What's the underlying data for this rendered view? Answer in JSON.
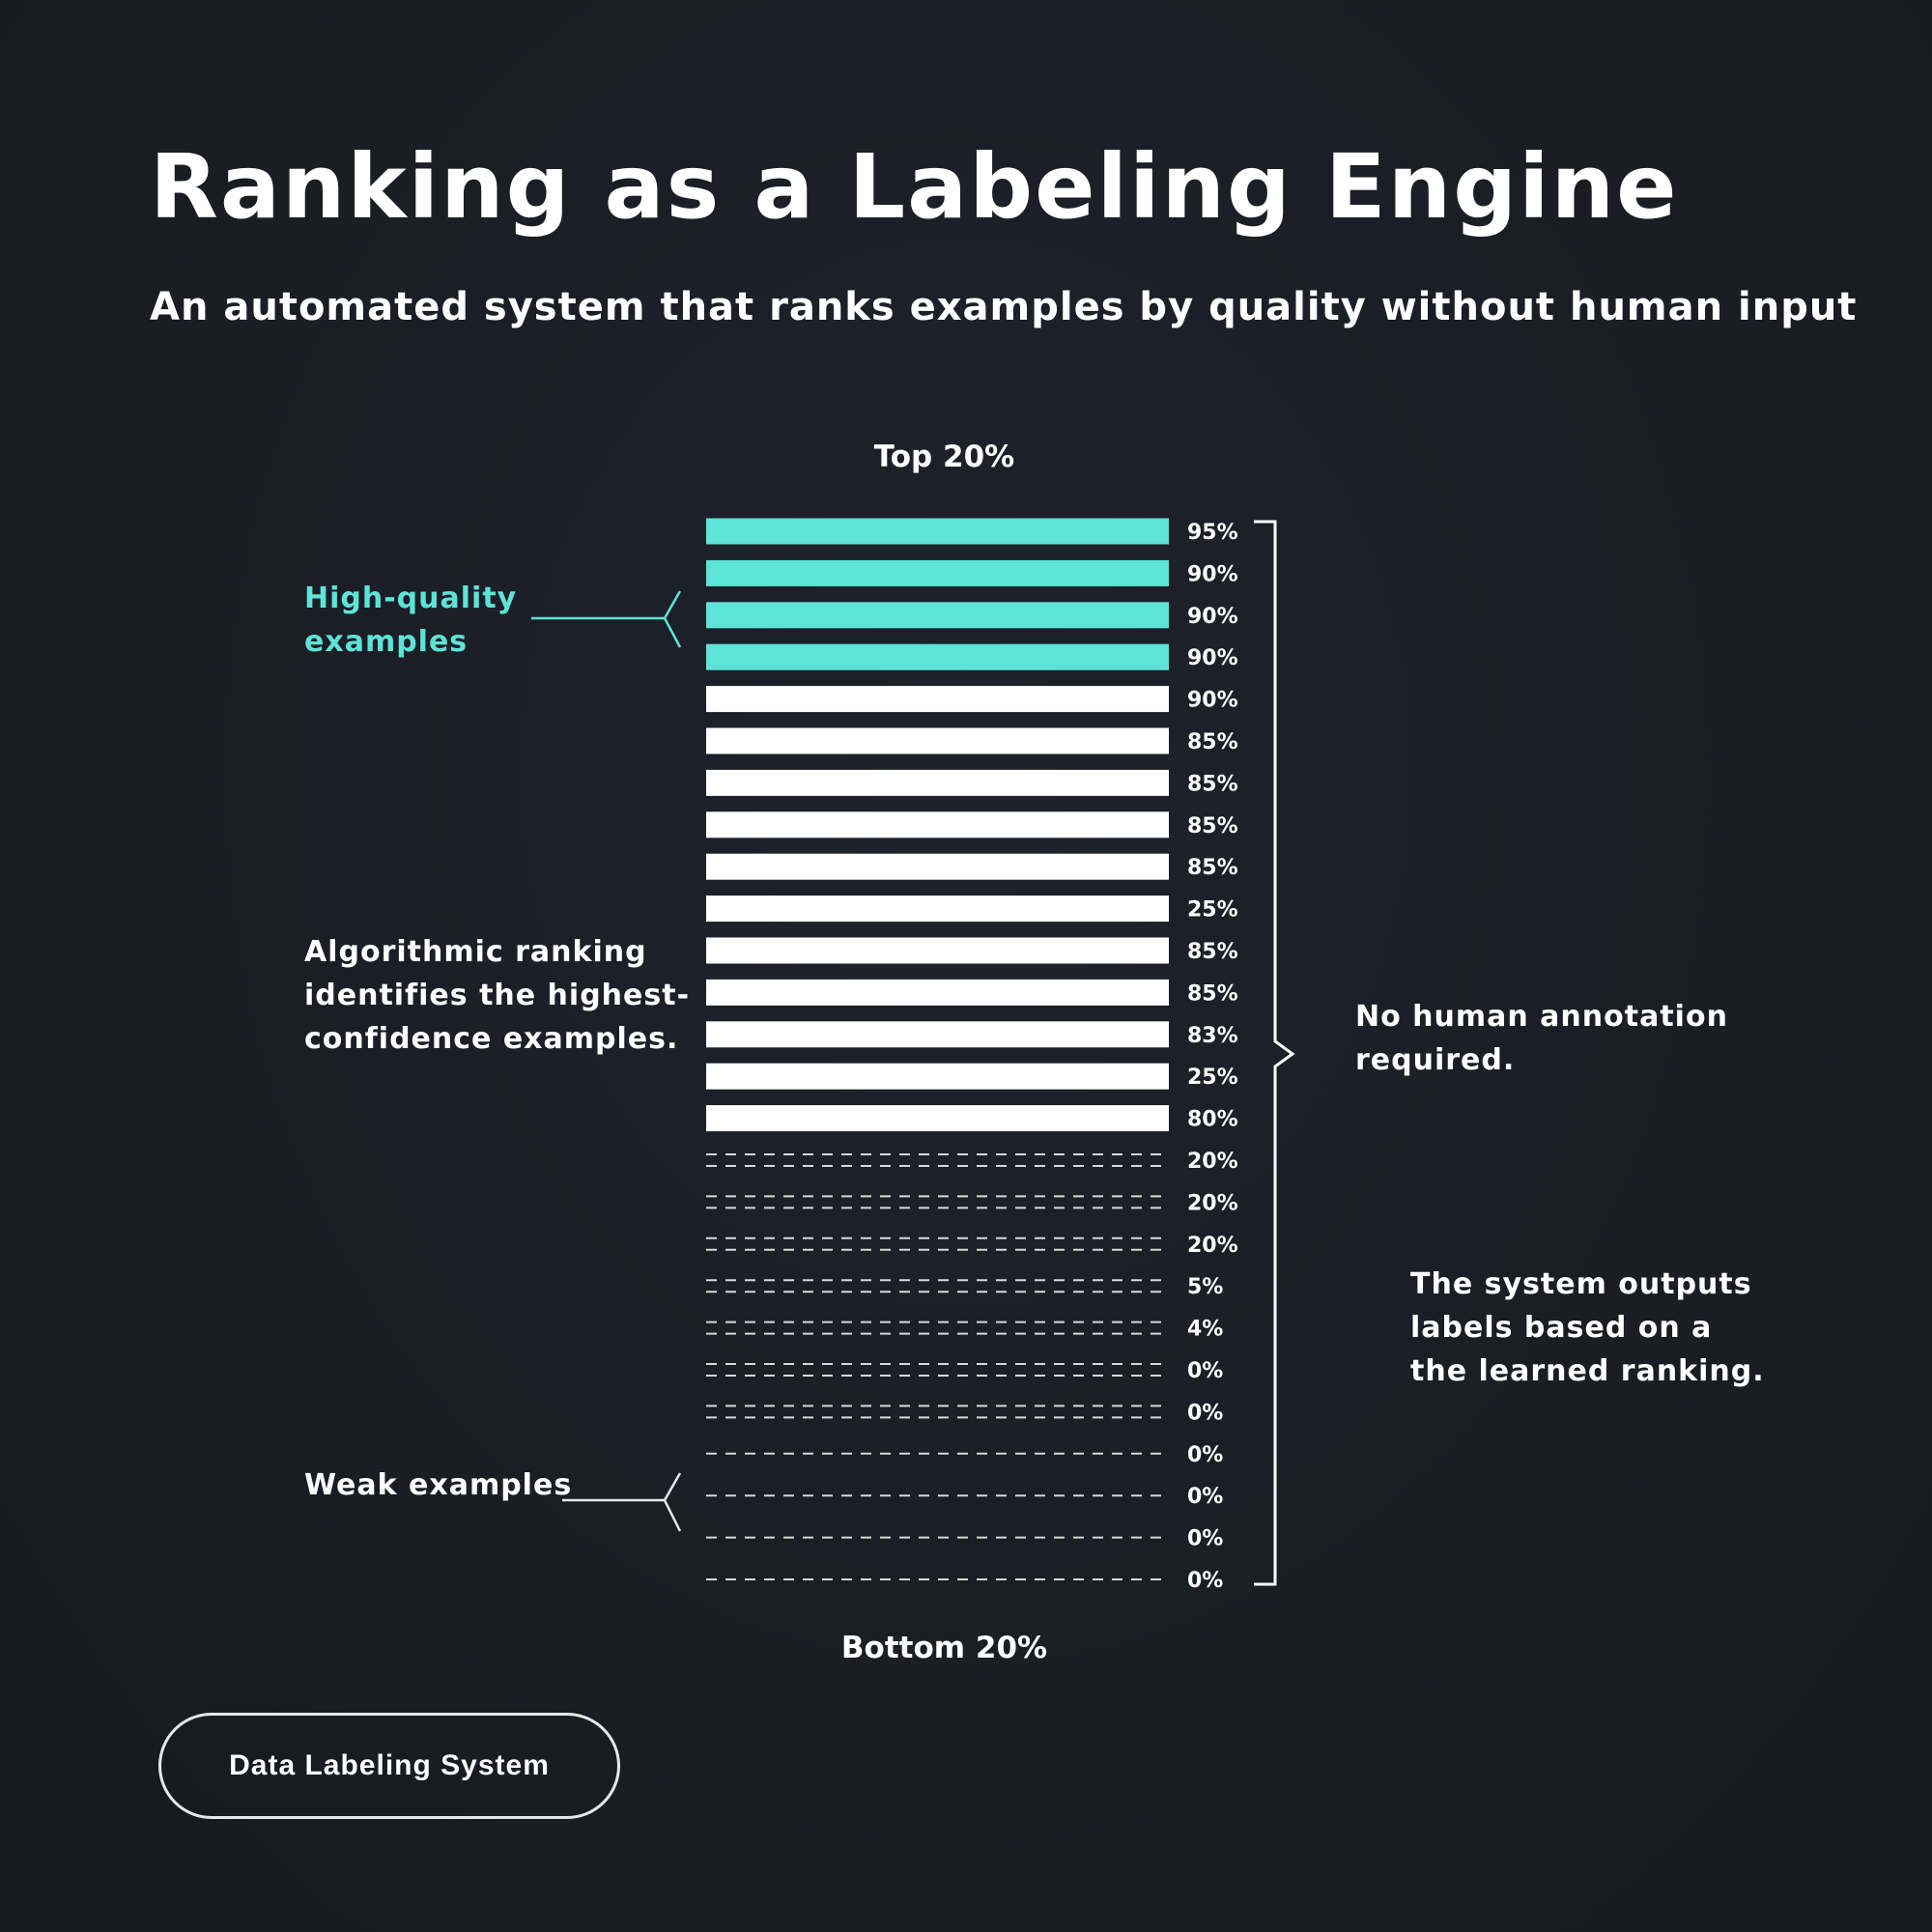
{
  "header": {
    "title": "Ranking as a Labeling Engine",
    "subtitle": "An automated system that ranks examples by quality without human input"
  },
  "diagram": {
    "top_label": "Top 20%",
    "bottom_label": "Bottom 20%",
    "high_quality_label_line1": "High-quality",
    "high_quality_label_line2": "examples",
    "algorithmic_line1": "Algorithmic ranking",
    "algorithmic_line2": "identifies the highest-",
    "algorithmic_line3": "confidence examples.",
    "weak_label": "Weak examples",
    "no_human_line1": "No human annotation",
    "no_human_line2": "required.",
    "outputs_line1": "The system outputs",
    "outputs_line2": "labels based on a",
    "outputs_line3": "the learned ranking."
  },
  "colors": {
    "highlight": "#5ee3d8",
    "bar": "#ffffff",
    "background": "#1a1d24"
  },
  "ranking": [
    {
      "pct": "95%",
      "style": "highlight"
    },
    {
      "pct": "90%",
      "style": "highlight"
    },
    {
      "pct": "90%",
      "style": "highlight"
    },
    {
      "pct": "90%",
      "style": "highlight"
    },
    {
      "pct": "90%",
      "style": "solid"
    },
    {
      "pct": "85%",
      "style": "solid"
    },
    {
      "pct": "85%",
      "style": "solid"
    },
    {
      "pct": "85%",
      "style": "solid"
    },
    {
      "pct": "85%",
      "style": "solid"
    },
    {
      "pct": "25%",
      "style": "solid"
    },
    {
      "pct": "85%",
      "style": "solid"
    },
    {
      "pct": "85%",
      "style": "solid"
    },
    {
      "pct": "83%",
      "style": "solid"
    },
    {
      "pct": "25%",
      "style": "solid"
    },
    {
      "pct": "80%",
      "style": "solid"
    },
    {
      "pct": "20%",
      "style": "dashed-double"
    },
    {
      "pct": "20%",
      "style": "dashed-double"
    },
    {
      "pct": "20%",
      "style": "dashed-double"
    },
    {
      "pct": "5%",
      "style": "dashed-double"
    },
    {
      "pct": "4%",
      "style": "dashed-double"
    },
    {
      "pct": "0%",
      "style": "dashed-double"
    },
    {
      "pct": "0%",
      "style": "dashed-double"
    },
    {
      "pct": "0%",
      "style": "dashed-single"
    },
    {
      "pct": "0%",
      "style": "dashed-single"
    },
    {
      "pct": "0%",
      "style": "dashed-single"
    },
    {
      "pct": "0%",
      "style": "dashed-single"
    }
  ],
  "footer": {
    "button_label": "Data Labeling System"
  }
}
